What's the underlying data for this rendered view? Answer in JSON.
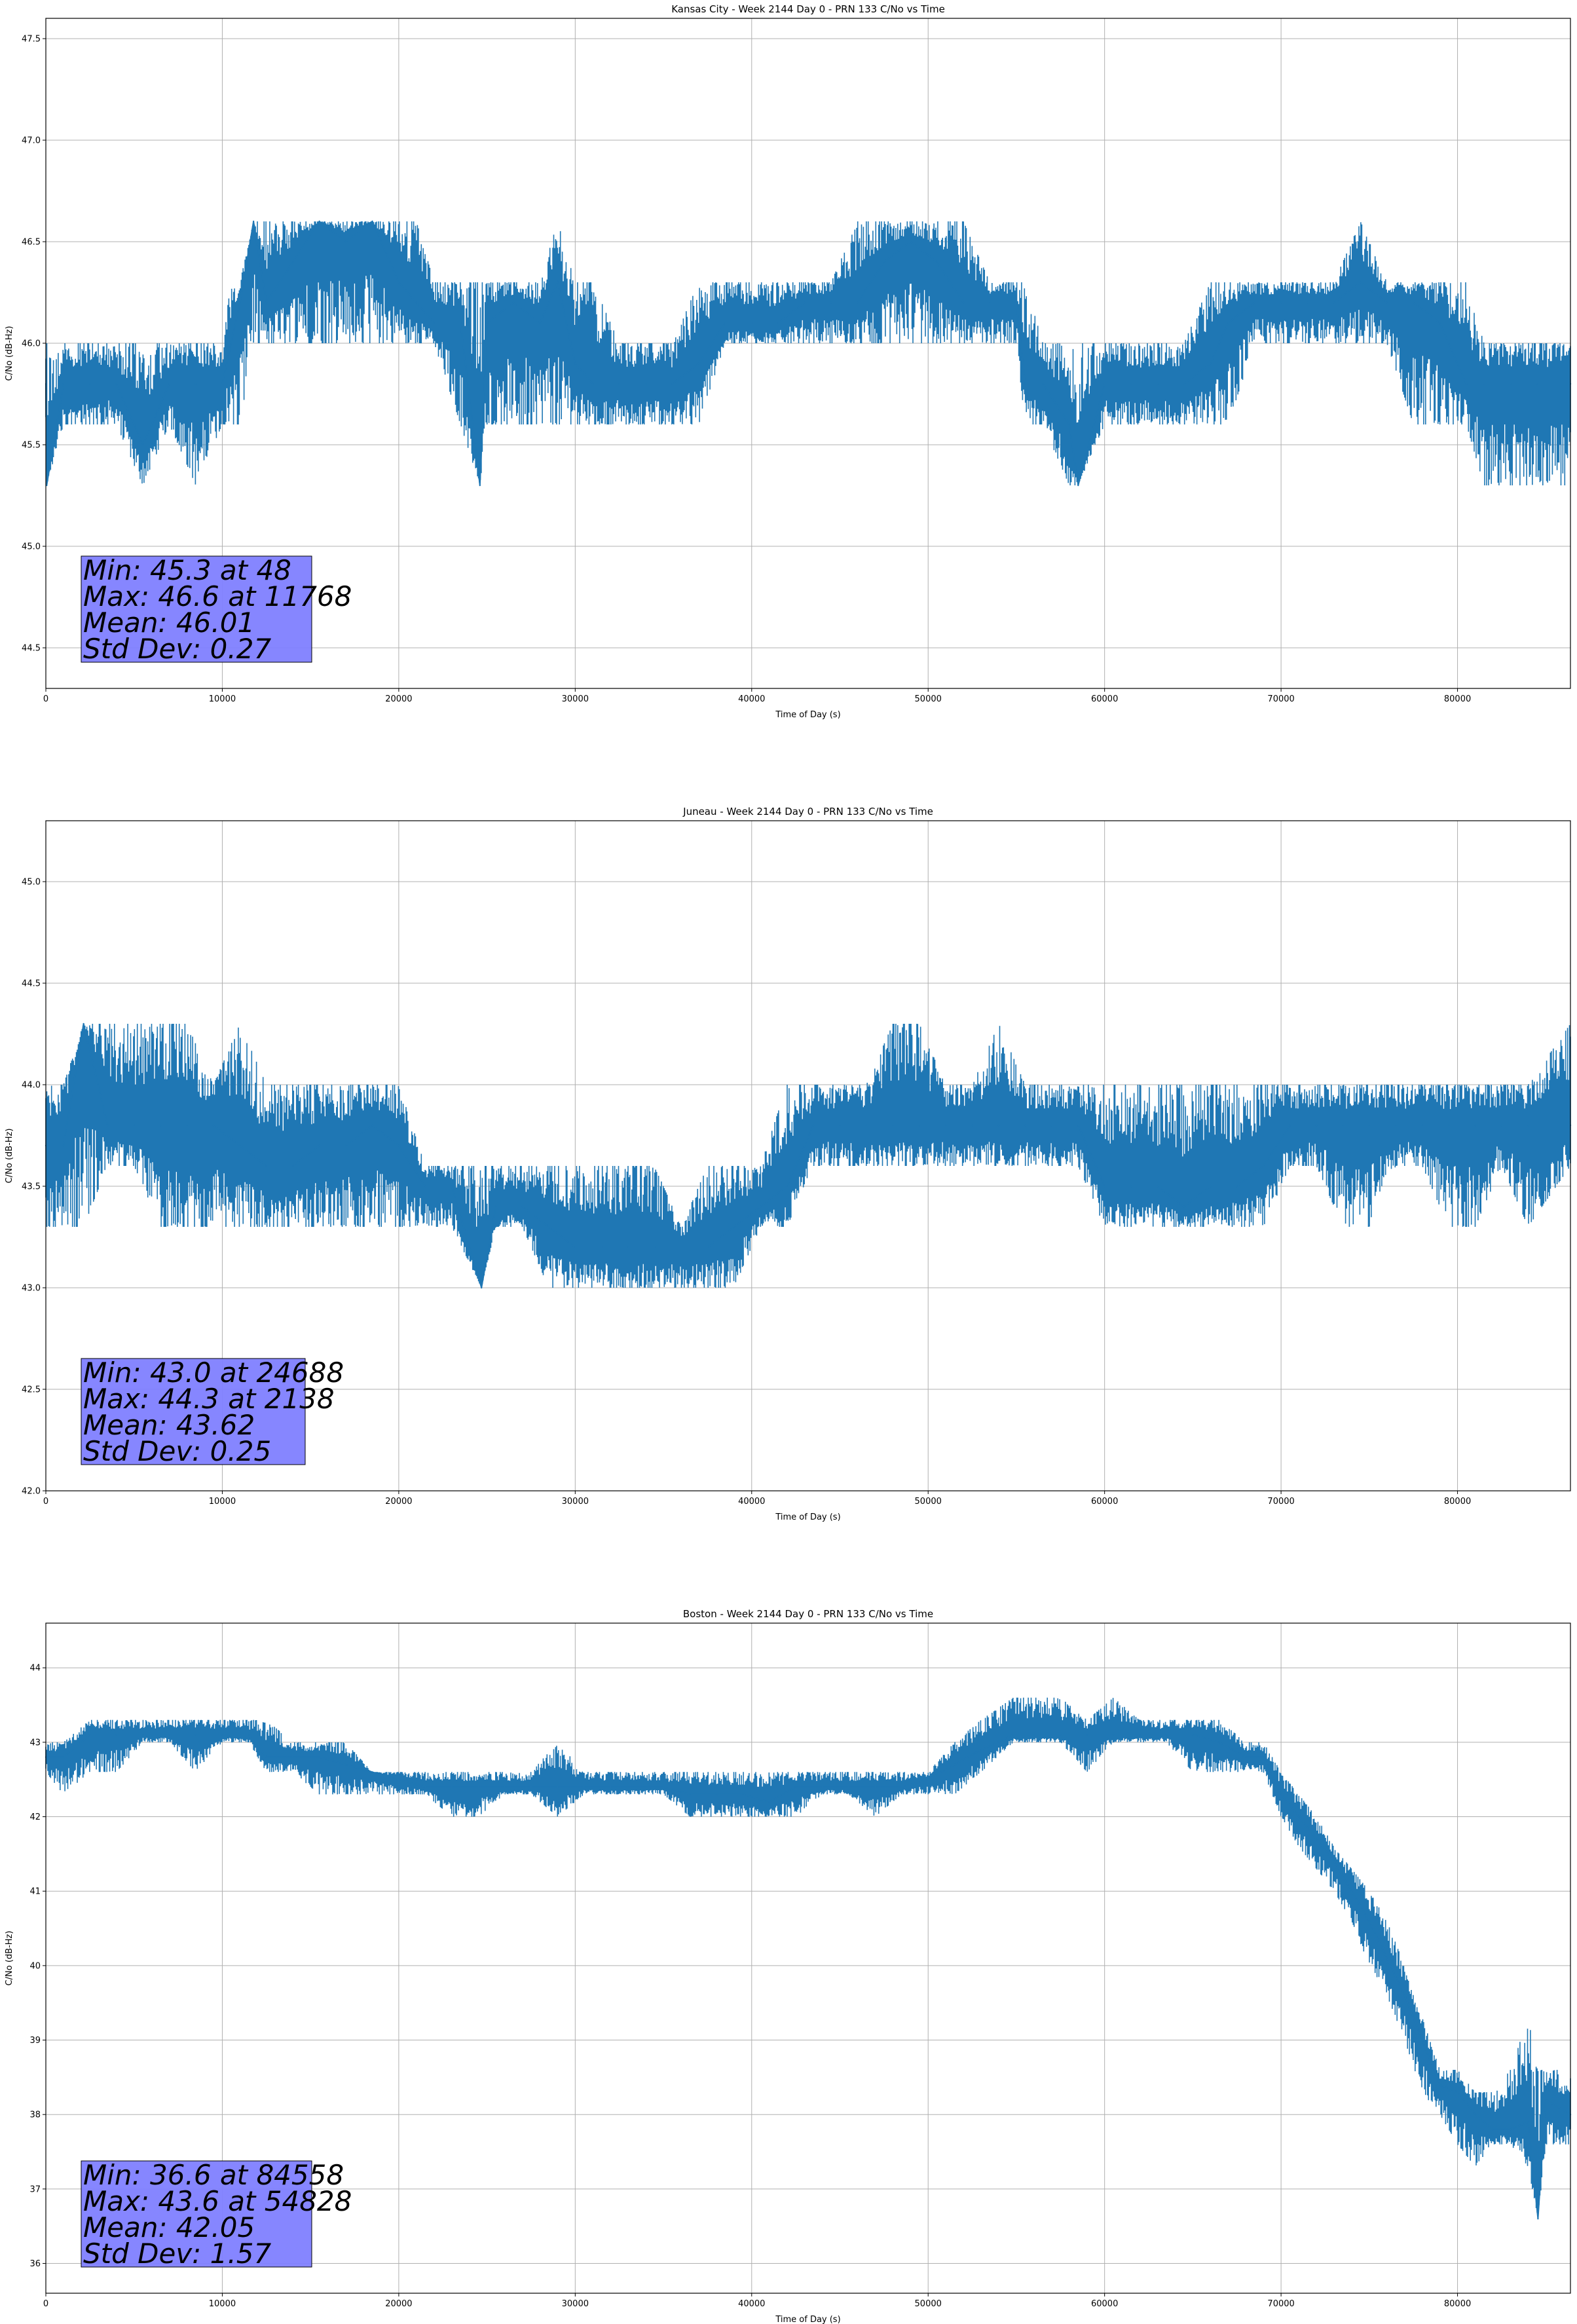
{
  "chart_data": [
    {
      "type": "line",
      "title": "Kansas City - Week 2144 Day 0 - PRN 133 C/No vs Time",
      "xlabel": "Time of Day (s)",
      "ylabel": "C/No (dB-Hz)",
      "xlim": [
        0,
        86400
      ],
      "ylim": [
        44.3,
        47.6
      ],
      "xticks": [
        0,
        10000,
        20000,
        30000,
        40000,
        50000,
        60000,
        70000,
        80000
      ],
      "yticks": [
        "44.5",
        "45.0",
        "45.5",
        "46.0",
        "46.5",
        "47.0",
        "47.5"
      ],
      "grid": true,
      "line_color": "#1f77b4",
      "series": [
        {
          "x": [
            0,
            48,
            1000,
            2500,
            4000,
            5500,
            7000,
            8500,
            10000,
            10500,
            11000,
            11768,
            12500,
            14000,
            15500,
            17000,
            18500,
            20000,
            21000,
            22000,
            23500,
            24600,
            25000,
            26500,
            28000,
            29000,
            30000,
            31000,
            32500,
            34000,
            35500,
            37000,
            38500,
            40000,
            41500,
            43000,
            44500,
            46000,
            47500,
            49000,
            50500,
            52000,
            53500,
            55000,
            55500,
            56500,
            58000,
            58500,
            60000,
            61500,
            63000,
            64500,
            66000,
            67000,
            68500,
            70000,
            71500,
            73000,
            74500,
            76000,
            77500,
            79000,
            80500,
            81500,
            83000,
            84500,
            86400
          ],
          "y": [
            45.8,
            45.3,
            45.8,
            45.8,
            45.8,
            45.5,
            45.8,
            45.8,
            45.8,
            46.0,
            46.2,
            46.6,
            46.2,
            46.4,
            46.6,
            46.5,
            46.6,
            46.3,
            46.2,
            46.1,
            46.1,
            45.3,
            46.1,
            46.2,
            46.1,
            46.3,
            45.9,
            45.8,
            45.8,
            45.8,
            45.8,
            45.9,
            46.1,
            46.1,
            46.1,
            46.2,
            46.2,
            46.2,
            46.4,
            46.5,
            46.4,
            46.2,
            46.2,
            46.2,
            45.8,
            45.8,
            45.6,
            45.3,
            45.8,
            45.8,
            45.8,
            45.8,
            45.9,
            46.1,
            46.2,
            46.2,
            46.2,
            46.2,
            46.3,
            46.2,
            46.2,
            46.1,
            45.8,
            45.8,
            45.8,
            45.8,
            45.8
          ],
          "band_low": [
            45.6,
            45.3,
            45.6,
            45.6,
            45.6,
            45.3,
            45.6,
            45.3,
            45.6,
            45.6,
            45.6,
            46.0,
            46.0,
            46.0,
            46.0,
            46.0,
            46.0,
            46.0,
            46.0,
            46.0,
            45.6,
            45.3,
            45.6,
            45.6,
            45.6,
            45.6,
            45.6,
            45.6,
            45.6,
            45.6,
            45.6,
            45.6,
            46.0,
            46.0,
            46.0,
            46.0,
            46.0,
            46.0,
            46.0,
            46.0,
            46.0,
            46.0,
            46.0,
            46.0,
            45.6,
            45.6,
            45.3,
            45.3,
            45.6,
            45.6,
            45.6,
            45.6,
            45.6,
            45.6,
            46.0,
            46.0,
            46.0,
            46.0,
            46.0,
            46.0,
            45.6,
            45.6,
            45.6,
            45.3,
            45.3,
            45.3,
            45.3
          ],
          "band_high": [
            46.0,
            46.0,
            46.0,
            46.0,
            46.0,
            46.0,
            46.0,
            46.0,
            46.0,
            46.3,
            46.3,
            46.6,
            46.6,
            46.6,
            46.6,
            46.6,
            46.6,
            46.6,
            46.6,
            46.3,
            46.3,
            46.3,
            46.3,
            46.3,
            46.3,
            46.6,
            46.3,
            46.3,
            46.0,
            46.0,
            46.0,
            46.3,
            46.3,
            46.3,
            46.3,
            46.3,
            46.3,
            46.6,
            46.6,
            46.6,
            46.6,
            46.6,
            46.3,
            46.3,
            46.3,
            46.0,
            46.0,
            46.0,
            46.0,
            46.0,
            46.0,
            46.0,
            46.3,
            46.3,
            46.3,
            46.3,
            46.3,
            46.3,
            46.6,
            46.3,
            46.3,
            46.3,
            46.3,
            46.0,
            46.0,
            46.0,
            46.0
          ]
        }
      ],
      "stats": [
        "Min: 45.3 at 48",
        "Max: 46.6 at 11768",
        "Mean: 46.01",
        "Std Dev: 0.27"
      ],
      "stats_box_color": "#8080ff"
    },
    {
      "type": "line",
      "title": "Juneau - Week 2144 Day 0 - PRN 133 C/No vs Time",
      "xlabel": "Time of Day (s)",
      "ylabel": "C/No (dB-Hz)",
      "xlim": [
        0,
        86400
      ],
      "ylim": [
        42.0,
        45.3
      ],
      "xticks": [
        0,
        10000,
        20000,
        30000,
        40000,
        50000,
        60000,
        70000,
        80000
      ],
      "yticks": [
        "42.0",
        "42.5",
        "43.0",
        "43.5",
        "44.0",
        "44.5",
        "45.0"
      ],
      "grid": true,
      "line_color": "#1f77b4",
      "series": [
        {
          "x": [
            0,
            1000,
            2138,
            3500,
            5000,
            6500,
            8000,
            9500,
            11000,
            12500,
            14000,
            15500,
            17000,
            18500,
            20000,
            21500,
            23000,
            24688,
            25500,
            27000,
            28500,
            30000,
            31500,
            33000,
            34500,
            36000,
            37500,
            39000,
            40500,
            42000,
            43500,
            45000,
            46500,
            48000,
            49500,
            51000,
            52500,
            54000,
            55500,
            57000,
            58500,
            60000,
            61500,
            63000,
            64500,
            66000,
            67500,
            69000,
            70500,
            72000,
            73500,
            75000,
            76500,
            78000,
            79500,
            81000,
            82500,
            84000,
            86400
          ],
          "y": [
            43.7,
            43.7,
            44.3,
            43.8,
            43.8,
            43.8,
            43.8,
            43.8,
            43.7,
            43.6,
            43.6,
            43.7,
            43.7,
            43.8,
            43.7,
            43.5,
            43.5,
            43.0,
            43.4,
            43.4,
            43.3,
            43.2,
            43.2,
            43.2,
            43.2,
            43.2,
            43.2,
            43.3,
            43.4,
            43.5,
            43.8,
            43.8,
            43.8,
            43.8,
            43.8,
            43.8,
            43.8,
            43.8,
            43.8,
            43.8,
            43.8,
            43.5,
            43.5,
            43.5,
            43.4,
            43.5,
            43.5,
            43.6,
            43.8,
            43.8,
            43.8,
            43.8,
            43.8,
            43.8,
            43.8,
            43.8,
            43.8,
            43.8,
            43.8
          ],
          "band_low": [
            43.3,
            43.3,
            43.3,
            43.6,
            43.6,
            43.3,
            43.3,
            43.3,
            43.3,
            43.3,
            43.3,
            43.3,
            43.3,
            43.3,
            43.3,
            43.3,
            43.3,
            43.0,
            43.3,
            43.3,
            43.0,
            43.0,
            43.0,
            43.0,
            43.0,
            43.0,
            43.0,
            43.0,
            43.3,
            43.3,
            43.6,
            43.6,
            43.6,
            43.6,
            43.6,
            43.6,
            43.6,
            43.6,
            43.6,
            43.6,
            43.6,
            43.3,
            43.3,
            43.3,
            43.3,
            43.3,
            43.3,
            43.3,
            43.6,
            43.6,
            43.3,
            43.3,
            43.6,
            43.6,
            43.3,
            43.3,
            43.6,
            43.3,
            43.6
          ],
          "band_high": [
            44.0,
            44.0,
            44.3,
            44.3,
            44.3,
            44.3,
            44.3,
            44.0,
            44.3,
            44.0,
            44.0,
            44.0,
            44.0,
            44.0,
            44.0,
            43.6,
            43.6,
            43.6,
            43.6,
            43.6,
            43.6,
            43.6,
            43.6,
            43.6,
            43.6,
            43.3,
            43.6,
            43.6,
            43.6,
            44.0,
            44.0,
            44.0,
            44.0,
            44.3,
            44.3,
            44.0,
            44.0,
            44.3,
            44.0,
            44.0,
            44.0,
            44.0,
            44.0,
            44.0,
            44.0,
            44.0,
            44.0,
            44.0,
            44.0,
            44.0,
            44.0,
            44.0,
            44.0,
            44.0,
            44.0,
            44.0,
            44.0,
            44.0,
            44.3
          ]
        }
      ],
      "stats": [
        "Min: 43.0 at 24688",
        "Max: 44.3 at 2138",
        "Mean: 43.62",
        "Std Dev: 0.25"
      ],
      "stats_box_color": "#8080ff"
    },
    {
      "type": "line",
      "title": "Boston - Week 2144 Day 0 - PRN 133 C/No vs Time",
      "xlabel": "Time of Day (s)",
      "ylabel": "C/No (dB-Hz)",
      "xlim": [
        0,
        86400
      ],
      "ylim": [
        35.6,
        44.6
      ],
      "xticks": [
        0,
        10000,
        20000,
        30000,
        40000,
        50000,
        60000,
        70000,
        80000
      ],
      "yticks": [
        "36",
        "37",
        "38",
        "39",
        "40",
        "41",
        "42",
        "43",
        "44"
      ],
      "grid": true,
      "line_color": "#1f77b4",
      "series": [
        {
          "x": [
            0,
            1000,
            2500,
            4000,
            5500,
            7000,
            8500,
            10000,
            11500,
            12500,
            14000,
            15500,
            17000,
            18500,
            20000,
            21500,
            23000,
            24500,
            26000,
            27500,
            29000,
            30500,
            32000,
            33500,
            35000,
            36500,
            38000,
            39500,
            41000,
            42500,
            44000,
            45500,
            47000,
            48500,
            50000,
            51500,
            53000,
            54828,
            56000,
            57500,
            59000,
            60500,
            62000,
            63500,
            65000,
            66500,
            68000,
            69000,
            70000,
            71000,
            72000,
            73000,
            74000,
            75000,
            76000,
            77000,
            78000,
            79000,
            80000,
            81000,
            82000,
            83000,
            84000,
            84558,
            85000,
            86400
          ],
          "y": [
            42.8,
            42.8,
            43.1,
            43.1,
            43.1,
            43.1,
            43.1,
            43.1,
            43.1,
            42.8,
            42.8,
            42.8,
            42.7,
            42.6,
            42.5,
            42.4,
            42.4,
            42.4,
            42.4,
            42.4,
            42.4,
            42.4,
            42.4,
            42.4,
            42.4,
            42.3,
            42.3,
            42.3,
            42.2,
            42.4,
            42.4,
            42.4,
            42.4,
            42.4,
            42.5,
            42.7,
            42.9,
            43.1,
            43.1,
            43.1,
            43.1,
            43.1,
            43.1,
            43.1,
            43.1,
            43.0,
            42.8,
            42.8,
            42.3,
            42.0,
            41.7,
            41.4,
            41.0,
            40.6,
            40.1,
            39.6,
            39.0,
            38.4,
            38.3,
            38.0,
            37.8,
            37.8,
            37.9,
            36.6,
            38.2,
            38.0
          ],
          "band_low": [
            42.6,
            42.3,
            42.6,
            42.6,
            43.0,
            43.0,
            42.6,
            43.0,
            43.0,
            42.6,
            42.6,
            42.3,
            42.3,
            42.3,
            42.3,
            42.3,
            42.0,
            42.0,
            42.3,
            42.3,
            42.0,
            42.3,
            42.3,
            42.3,
            42.3,
            42.0,
            42.0,
            42.0,
            42.0,
            42.0,
            42.3,
            42.3,
            42.0,
            42.3,
            42.3,
            42.3,
            42.6,
            43.0,
            43.0,
            43.0,
            42.6,
            43.0,
            43.0,
            43.0,
            42.6,
            42.6,
            42.6,
            42.6,
            42.0,
            41.6,
            41.3,
            41.0,
            40.6,
            40.0,
            39.6,
            39.0,
            38.3,
            38.0,
            37.6,
            37.3,
            37.6,
            37.6,
            37.3,
            36.6,
            37.6,
            37.6
          ],
          "band_high": [
            43.0,
            43.0,
            43.3,
            43.3,
            43.3,
            43.3,
            43.3,
            43.3,
            43.3,
            43.3,
            43.0,
            43.0,
            43.0,
            42.6,
            42.6,
            42.6,
            42.6,
            42.6,
            42.6,
            42.6,
            43.0,
            42.6,
            42.6,
            42.6,
            42.6,
            42.6,
            42.6,
            42.6,
            42.6,
            42.6,
            42.6,
            42.6,
            42.6,
            42.6,
            42.6,
            43.0,
            43.3,
            43.6,
            43.6,
            43.6,
            43.3,
            43.6,
            43.3,
            43.3,
            43.3,
            43.3,
            43.0,
            43.0,
            42.6,
            42.3,
            42.0,
            41.6,
            41.3,
            41.0,
            40.6,
            40.0,
            39.3,
            38.6,
            38.6,
            38.3,
            38.3,
            38.6,
            39.3,
            38.6,
            38.6,
            38.6
          ]
        }
      ],
      "stats": [
        "Min: 36.6 at 84558",
        "Max: 43.6 at 54828",
        "Mean: 42.05",
        "Std Dev: 1.57"
      ],
      "stats_box_color": "#8080ff"
    }
  ]
}
